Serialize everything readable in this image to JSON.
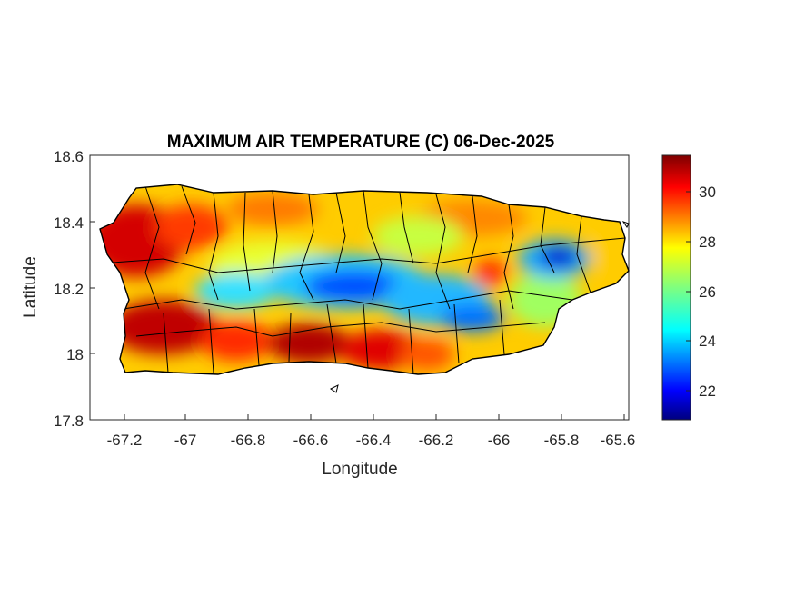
{
  "title": "MAXIMUM AIR TEMPERATURE (C) 06-Dec-2025",
  "xlabel": "Longitude",
  "ylabel": "Latitude",
  "x_ticks": [
    "-67.2",
    "-67",
    "-66.8",
    "-66.6",
    "-66.4",
    "-66.2",
    "-66",
    "-65.8",
    "-65.6"
  ],
  "y_ticks": [
    "18.6",
    "18.4",
    "18.2",
    "18",
    "17.8"
  ],
  "colorbar_ticks": [
    "30",
    "28",
    "26",
    "24",
    "22"
  ],
  "xlim": [
    -67.3,
    -65.58
  ],
  "ylim": [
    17.8,
    18.6
  ],
  "colorbar_range": [
    20.8,
    31.4
  ],
  "colormap": "jet",
  "colors": {
    "axes_edge": "#262626",
    "background": "#ffffff"
  },
  "map_data": {
    "region": "Puerto Rico",
    "variable": "maximum air temperature",
    "units": "C",
    "approx_field": {
      "warm_west_coast_lon_-67.2_lat_18.35": 30.5,
      "warm_south_coast_lon_-66.6_lat_18.0": 31,
      "cool_central_mountains_lon_-66.45_lat_18.2": 23,
      "cool_northeast_lon_-65.8_lat_18.28": 22.5,
      "north_coast_lon_-66.3_lat_18.45": 28.5
    }
  }
}
